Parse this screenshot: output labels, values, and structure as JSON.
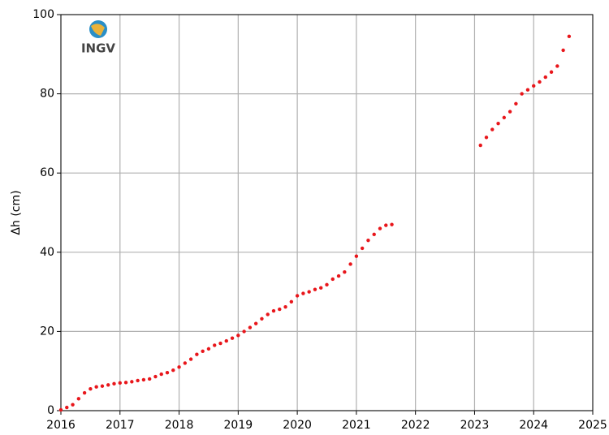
{
  "chart_data": {
    "type": "scatter",
    "ylabel": "Δh (cm)",
    "logo": "INGV",
    "xlim": [
      2016,
      2025
    ],
    "xticks": [
      2016,
      2017,
      2018,
      2019,
      2020,
      2021,
      2022,
      2023,
      2024,
      2025
    ],
    "ylim": [
      0,
      100
    ],
    "yticks": [
      0,
      20,
      40,
      60,
      80,
      100
    ],
    "grid": true,
    "color": "#e8161b",
    "x": [
      2016.0,
      2016.1,
      2016.2,
      2016.3,
      2016.4,
      2016.5,
      2016.6,
      2016.7,
      2016.8,
      2016.9,
      2017.0,
      2017.1,
      2017.2,
      2017.3,
      2017.4,
      2017.5,
      2017.6,
      2017.7,
      2017.8,
      2017.9,
      2018.0,
      2018.1,
      2018.2,
      2018.3,
      2018.4,
      2018.5,
      2018.6,
      2018.7,
      2018.8,
      2018.9,
      2019.0,
      2019.1,
      2019.2,
      2019.3,
      2019.4,
      2019.5,
      2019.6,
      2019.7,
      2019.8,
      2019.9,
      2020.0,
      2020.1,
      2020.2,
      2020.3,
      2020.4,
      2020.5,
      2020.6,
      2020.7,
      2020.8,
      2020.9,
      2021.0,
      2021.1,
      2021.2,
      2021.3,
      2021.4,
      2021.5,
      2021.6,
      2023.1,
      2023.2,
      2023.3,
      2023.4,
      2023.5,
      2023.6,
      2023.7,
      2023.8,
      2023.9,
      2024.0,
      2024.1,
      2024.2,
      2024.3,
      2024.4,
      2024.5,
      2024.6
    ],
    "values": [
      0.2,
      0.8,
      1.5,
      3.0,
      4.5,
      5.5,
      6.0,
      6.2,
      6.5,
      6.8,
      7.0,
      7.1,
      7.3,
      7.6,
      7.8,
      8.0,
      8.6,
      9.2,
      9.6,
      10.2,
      11.0,
      12.0,
      13.0,
      14.2,
      15.0,
      15.6,
      16.5,
      17.0,
      17.6,
      18.3,
      19.0,
      20.0,
      21.0,
      22.0,
      23.2,
      24.3,
      25.2,
      25.6,
      26.2,
      27.5,
      29.0,
      29.6,
      30.0,
      30.6,
      31.0,
      31.8,
      33.2,
      34.0,
      35.0,
      37.0,
      39.0,
      41.0,
      43.0,
      44.5,
      46.0,
      46.8,
      47.0,
      67.0,
      69.0,
      71.0,
      72.5,
      74.0,
      75.5,
      77.5,
      80.0,
      81.0,
      82.0,
      83.0,
      84.2,
      85.5,
      87.0,
      91.0,
      94.5
    ]
  }
}
